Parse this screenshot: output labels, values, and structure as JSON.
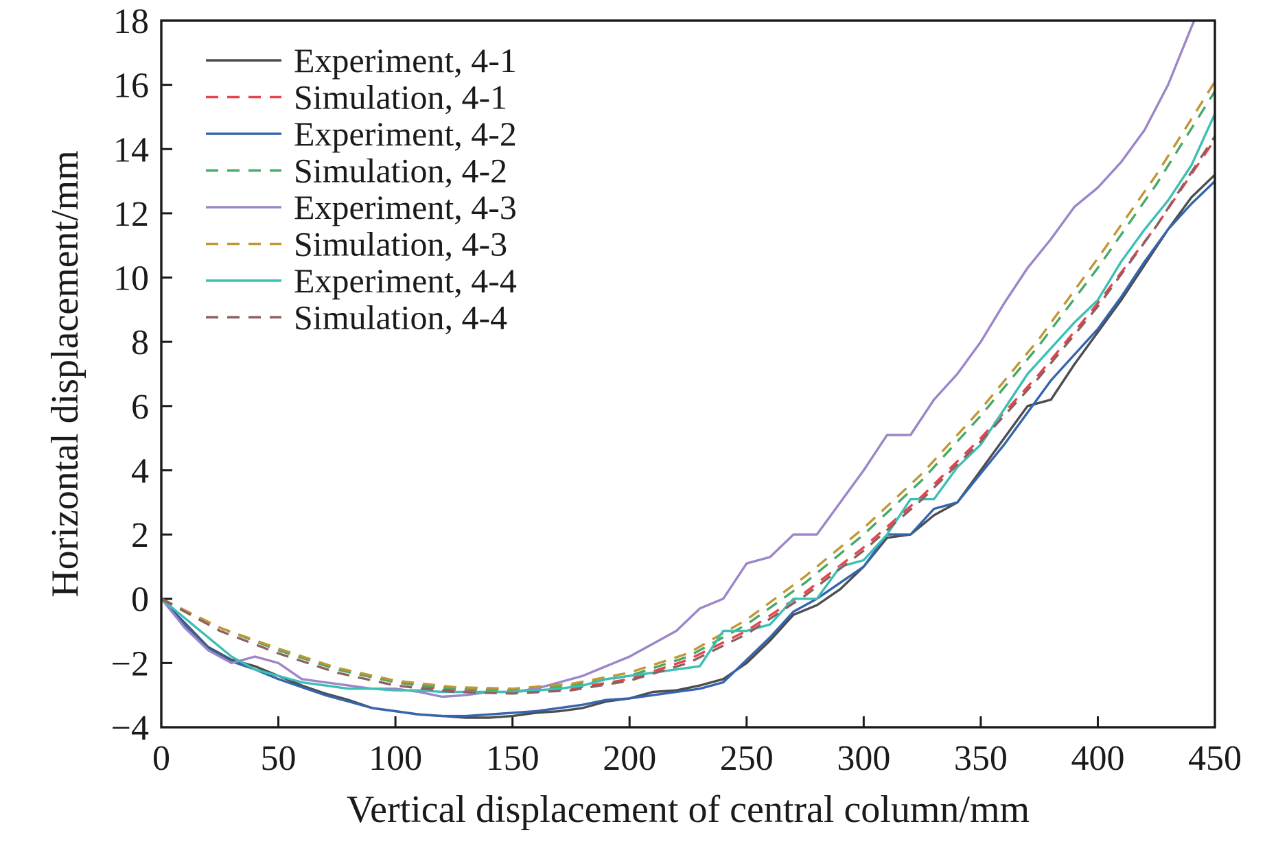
{
  "chart_data": {
    "type": "line",
    "title": "",
    "xlabel": "Vertical displacement of central column/mm",
    "ylabel": "Horizontal displacement/mm",
    "xlim": [
      0,
      450
    ],
    "ylim": [
      -4,
      18
    ],
    "xticks": [
      0,
      50,
      100,
      150,
      200,
      250,
      300,
      350,
      400,
      450
    ],
    "yticks": [
      -4,
      -2,
      0,
      2,
      4,
      6,
      8,
      10,
      12,
      14,
      16,
      18
    ],
    "grid": false,
    "legend_position": "upper-left",
    "frame_color": "#1a1a1a",
    "series": [
      {
        "name": "Experiment, 4-1",
        "color": "#4d4d4d",
        "dash": false,
        "x": [
          0,
          10,
          20,
          30,
          40,
          50,
          60,
          70,
          80,
          90,
          100,
          110,
          120,
          130,
          140,
          150,
          160,
          170,
          180,
          190,
          200,
          210,
          220,
          230,
          240,
          250,
          260,
          270,
          280,
          290,
          300,
          310,
          320,
          330,
          340,
          350,
          360,
          370,
          380,
          390,
          400,
          410,
          420,
          430,
          440,
          450
        ],
        "y": [
          0,
          -0.75,
          -1.5,
          -1.9,
          -2.1,
          -2.4,
          -2.7,
          -2.95,
          -3.15,
          -3.4,
          -3.5,
          -3.6,
          -3.65,
          -3.7,
          -3.7,
          -3.65,
          -3.55,
          -3.5,
          -3.4,
          -3.2,
          -3.1,
          -2.9,
          -2.85,
          -2.7,
          -2.5,
          -2.0,
          -1.3,
          -0.5,
          -0.2,
          0.3,
          1.0,
          1.9,
          2.0,
          2.6,
          3.0,
          4.0,
          5.0,
          6.0,
          6.2,
          7.3,
          8.3,
          9.3,
          10.4,
          11.5,
          12.5,
          13.2
        ]
      },
      {
        "name": "Simulation, 4-1",
        "color": "#e6434b",
        "dash": true,
        "x": [
          0,
          25,
          50,
          75,
          100,
          125,
          150,
          175,
          200,
          225,
          250,
          275,
          300,
          325,
          350,
          375,
          400,
          425,
          450
        ],
        "y": [
          0,
          -0.9,
          -1.6,
          -2.2,
          -2.6,
          -2.85,
          -2.9,
          -2.8,
          -2.5,
          -1.9,
          -1.0,
          0.2,
          1.6,
          3.2,
          5.0,
          7.0,
          9.2,
          11.6,
          14.3
        ]
      },
      {
        "name": "Experiment, 4-2",
        "color": "#3465ae",
        "dash": false,
        "x": [
          0,
          10,
          20,
          30,
          40,
          50,
          60,
          70,
          80,
          90,
          100,
          110,
          120,
          130,
          140,
          150,
          160,
          170,
          180,
          190,
          200,
          210,
          220,
          230,
          240,
          250,
          260,
          270,
          280,
          290,
          300,
          310,
          320,
          330,
          340,
          350,
          360,
          370,
          380,
          390,
          400,
          410,
          420,
          430,
          440,
          450
        ],
        "y": [
          0,
          -0.8,
          -1.55,
          -1.95,
          -2.2,
          -2.5,
          -2.75,
          -3.0,
          -3.2,
          -3.4,
          -3.5,
          -3.6,
          -3.65,
          -3.65,
          -3.6,
          -3.55,
          -3.5,
          -3.4,
          -3.3,
          -3.15,
          -3.1,
          -3.0,
          -2.9,
          -2.8,
          -2.6,
          -1.9,
          -1.2,
          -0.4,
          0.0,
          0.5,
          1.0,
          2.0,
          2.0,
          2.8,
          3.0,
          3.9,
          4.8,
          5.8,
          6.8,
          7.6,
          8.4,
          9.4,
          10.5,
          11.5,
          12.3,
          13.0
        ]
      },
      {
        "name": "Simulation, 4-2",
        "color": "#47a867",
        "dash": true,
        "x": [
          0,
          25,
          50,
          75,
          100,
          125,
          150,
          175,
          200,
          225,
          250,
          275,
          300,
          325,
          350,
          375,
          400,
          425,
          450
        ],
        "y": [
          0,
          -0.9,
          -1.6,
          -2.2,
          -2.6,
          -2.8,
          -2.85,
          -2.7,
          -2.4,
          -1.8,
          -0.8,
          0.5,
          2.0,
          3.7,
          5.7,
          7.9,
          10.3,
          12.9,
          15.8
        ]
      },
      {
        "name": "Experiment, 4-3",
        "color": "#9c85c8",
        "dash": false,
        "x": [
          0,
          10,
          20,
          30,
          40,
          50,
          60,
          70,
          80,
          90,
          100,
          110,
          120,
          130,
          140,
          150,
          160,
          170,
          180,
          190,
          200,
          210,
          220,
          230,
          240,
          250,
          260,
          270,
          280,
          290,
          300,
          310,
          320,
          330,
          340,
          350,
          360,
          370,
          380,
          390,
          400,
          410,
          420,
          430,
          440,
          450
        ],
        "y": [
          0,
          -0.9,
          -1.6,
          -2.0,
          -1.8,
          -2.0,
          -2.5,
          -2.6,
          -2.7,
          -2.8,
          -2.8,
          -2.9,
          -3.05,
          -3.0,
          -2.9,
          -2.9,
          -2.8,
          -2.6,
          -2.4,
          -2.1,
          -1.8,
          -1.4,
          -1.0,
          -0.3,
          0.0,
          1.1,
          1.3,
          2.0,
          2.0,
          3.0,
          4.0,
          5.1,
          5.1,
          6.2,
          7.0,
          8.0,
          9.2,
          10.3,
          11.2,
          12.2,
          12.8,
          13.6,
          14.6,
          16.0,
          17.8,
          19.5
        ]
      },
      {
        "name": "Simulation, 4-3",
        "color": "#c09733",
        "dash": true,
        "x": [
          0,
          25,
          50,
          75,
          100,
          125,
          150,
          175,
          200,
          225,
          250,
          275,
          300,
          325,
          350,
          375,
          400,
          425,
          450
        ],
        "y": [
          0,
          -0.9,
          -1.55,
          -2.15,
          -2.55,
          -2.75,
          -2.8,
          -2.65,
          -2.3,
          -1.7,
          -0.65,
          0.7,
          2.2,
          3.9,
          5.9,
          8.1,
          10.6,
          13.2,
          16.1
        ]
      },
      {
        "name": "Experiment, 4-4",
        "color": "#3cbfb4",
        "dash": false,
        "x": [
          0,
          10,
          20,
          30,
          40,
          50,
          60,
          70,
          80,
          90,
          100,
          110,
          120,
          130,
          140,
          150,
          160,
          170,
          180,
          190,
          200,
          210,
          220,
          230,
          240,
          250,
          260,
          270,
          280,
          290,
          300,
          310,
          320,
          330,
          340,
          350,
          360,
          370,
          380,
          390,
          400,
          410,
          420,
          430,
          440,
          450
        ],
        "y": [
          0,
          -0.6,
          -1.2,
          -1.8,
          -2.2,
          -2.4,
          -2.6,
          -2.7,
          -2.8,
          -2.8,
          -2.85,
          -2.85,
          -2.9,
          -2.9,
          -2.9,
          -2.9,
          -2.85,
          -2.8,
          -2.7,
          -2.5,
          -2.4,
          -2.3,
          -2.2,
          -2.1,
          -1.0,
          -1.0,
          -0.8,
          0.0,
          0.0,
          1.0,
          1.2,
          2.0,
          3.1,
          3.1,
          4.1,
          4.8,
          5.9,
          7.0,
          7.8,
          8.6,
          9.3,
          10.5,
          11.5,
          12.4,
          13.5,
          15.1
        ]
      },
      {
        "name": "Simulation, 4-4",
        "color": "#8d5f5f",
        "dash": true,
        "x": [
          0,
          25,
          50,
          75,
          100,
          125,
          150,
          175,
          200,
          225,
          250,
          275,
          300,
          325,
          350,
          375,
          400,
          425,
          450
        ],
        "y": [
          0,
          -1.0,
          -1.7,
          -2.3,
          -2.7,
          -2.9,
          -2.95,
          -2.85,
          -2.55,
          -2.0,
          -1.1,
          0.1,
          1.5,
          3.1,
          4.9,
          6.9,
          9.1,
          11.6,
          14.4
        ]
      }
    ]
  }
}
